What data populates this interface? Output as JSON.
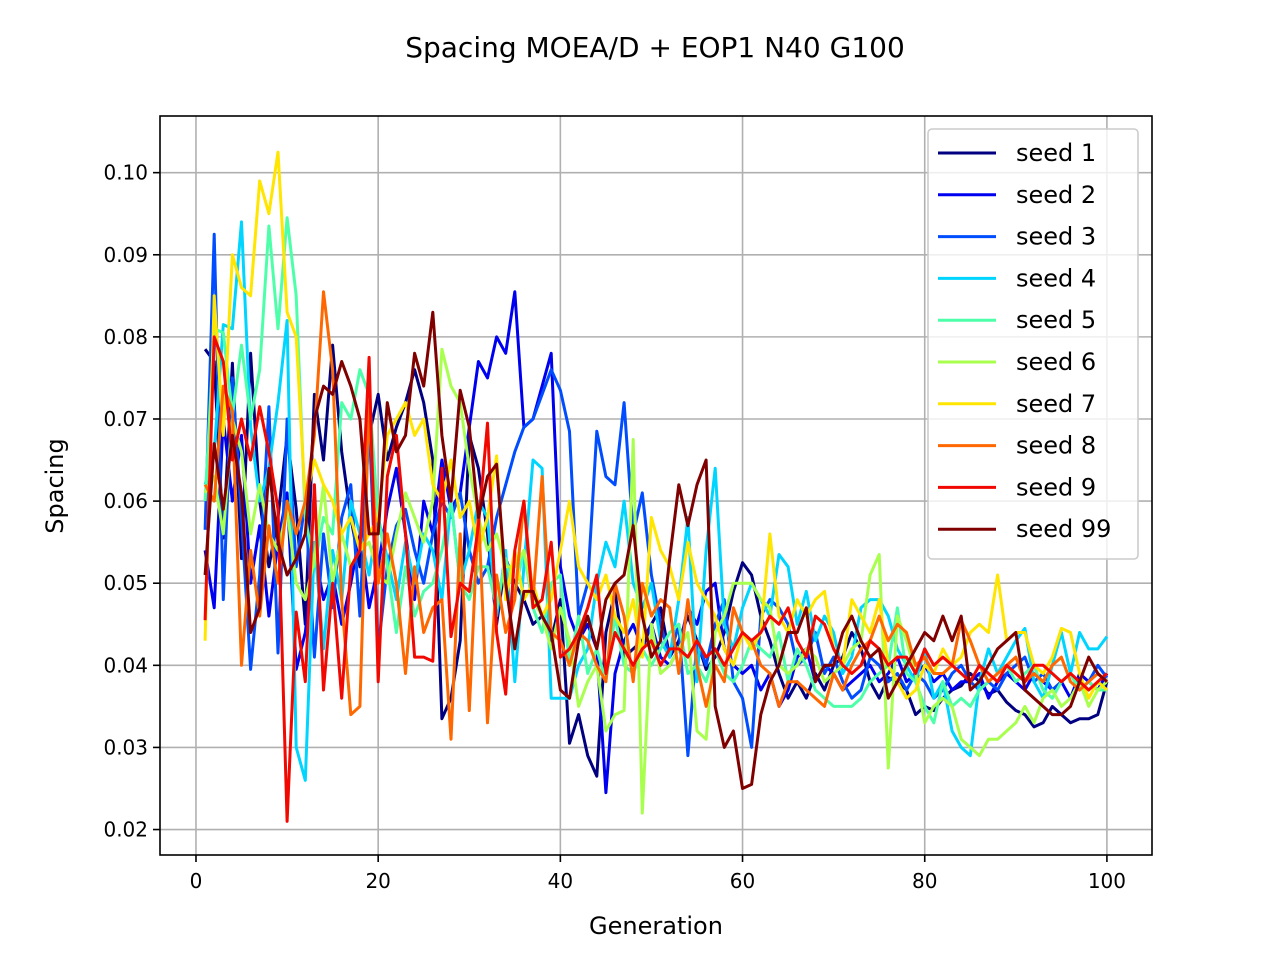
{
  "chart_data": {
    "type": "line",
    "title": "Spacing MOEA/D + EOP1 N40 G100",
    "xlabel": "Generation",
    "ylabel": "Spacing",
    "xlim": [
      -3.95,
      104.95
    ],
    "ylim": [
      0.0169,
      0.1069
    ],
    "xticks": [
      0,
      20,
      40,
      60,
      80,
      100
    ],
    "yticks": [
      0.02,
      0.03,
      0.04,
      0.05,
      0.06,
      0.07,
      0.08,
      0.09,
      0.1
    ],
    "xtick_labels": [
      "0",
      "20",
      "40",
      "60",
      "80",
      "100"
    ],
    "ytick_labels": [
      "0.02",
      "0.03",
      "0.04",
      "0.05",
      "0.06",
      "0.07",
      "0.08",
      "0.09",
      "0.10"
    ],
    "grid": true,
    "legend_position": "upper right",
    "colors": [
      "#000080",
      "#0000f1",
      "#004dff",
      "#00d5ff",
      "#4effa9",
      "#a9ff4e",
      "#ffe500",
      "#ff6800",
      "#f10800",
      "#800000"
    ],
    "series": [
      {
        "name": "seed 1",
        "values": [
          0.0785,
          0.077,
          0.0555,
          0.0768,
          0.053,
          0.078,
          0.06,
          0.052,
          0.058,
          0.068,
          0.059,
          0.045,
          0.073,
          0.065,
          0.079,
          0.066,
          0.058,
          0.052,
          0.068,
          0.073,
          0.065,
          0.069,
          0.072,
          0.076,
          0.072,
          0.065,
          0.0335,
          0.036,
          0.043,
          0.068,
          0.064,
          0.056,
          0.045,
          0.053,
          0.05,
          0.048,
          0.045,
          0.046,
          0.043,
          0.048,
          0.0305,
          0.034,
          0.029,
          0.0265,
          0.044,
          0.049,
          0.041,
          0.042,
          0.043,
          0.045,
          0.047,
          0.041,
          0.043,
          0.046,
          0.043,
          0.0395,
          0.041,
          0.044,
          0.049,
          0.0525,
          0.051,
          0.046,
          0.043,
          0.039,
          0.036,
          0.038,
          0.036,
          0.039,
          0.037,
          0.04,
          0.041,
          0.044,
          0.042,
          0.038,
          0.036,
          0.0385,
          0.038,
          0.037,
          0.034,
          0.035,
          0.0345,
          0.036,
          0.037,
          0.0375,
          0.039,
          0.038,
          0.0365,
          0.037,
          0.0355,
          0.0345,
          0.034,
          0.0325,
          0.033,
          0.035,
          0.034,
          0.033,
          0.0335,
          0.0335,
          0.034,
          0.038
        ]
      },
      {
        "name": "seed 2",
        "values": [
          0.054,
          0.047,
          0.07,
          0.06,
          0.068,
          0.05,
          0.057,
          0.046,
          0.055,
          0.061,
          0.0395,
          0.044,
          0.054,
          0.048,
          0.051,
          0.045,
          0.05,
          0.056,
          0.047,
          0.052,
          0.059,
          0.064,
          0.056,
          0.048,
          0.06,
          0.056,
          0.065,
          0.059,
          0.061,
          0.069,
          0.077,
          0.075,
          0.08,
          0.078,
          0.0855,
          0.069,
          0.07,
          0.074,
          0.078,
          0.052,
          0.046,
          0.043,
          0.045,
          0.042,
          0.0245,
          0.039,
          0.043,
          0.045,
          0.042,
          0.045,
          0.041,
          0.04,
          0.042,
          0.047,
          0.045,
          0.049,
          0.05,
          0.042,
          0.04,
          0.039,
          0.04,
          0.037,
          0.039,
          0.035,
          0.037,
          0.041,
          0.042,
          0.038,
          0.04,
          0.039,
          0.037,
          0.038,
          0.039,
          0.04,
          0.038,
          0.039,
          0.041,
          0.038,
          0.039,
          0.04,
          0.038,
          0.039,
          0.037,
          0.038,
          0.038,
          0.039,
          0.036,
          0.038,
          0.039,
          0.038,
          0.037,
          0.039,
          0.038,
          0.037,
          0.038,
          0.036,
          0.039,
          0.038,
          0.037,
          0.039
        ]
      },
      {
        "name": "seed 3",
        "values": [
          0.0565,
          0.0925,
          0.048,
          0.075,
          0.058,
          0.0395,
          0.051,
          0.0715,
          0.0415,
          0.07,
          0.052,
          0.06,
          0.041,
          0.056,
          0.047,
          0.058,
          0.062,
          0.046,
          0.07,
          0.042,
          0.052,
          0.057,
          0.059,
          0.054,
          0.05,
          0.056,
          0.06,
          0.058,
          0.061,
          0.054,
          0.05,
          0.052,
          0.058,
          0.062,
          0.066,
          0.069,
          0.07,
          0.073,
          0.076,
          0.0735,
          0.0685,
          0.046,
          0.05,
          0.0685,
          0.063,
          0.062,
          0.072,
          0.056,
          0.061,
          0.051,
          0.045,
          0.041,
          0.045,
          0.029,
          0.043,
          0.04,
          0.045,
          0.048,
          0.038,
          0.036,
          0.03,
          0.046,
          0.048,
          0.047,
          0.045,
          0.04,
          0.041,
          0.044,
          0.039,
          0.041,
          0.038,
          0.036,
          0.037,
          0.041,
          0.04,
          0.038,
          0.039,
          0.037,
          0.039,
          0.038,
          0.036,
          0.037,
          0.039,
          0.04,
          0.038,
          0.037,
          0.038,
          0.037,
          0.039,
          0.04,
          0.041,
          0.038,
          0.039,
          0.037,
          0.038,
          0.039,
          0.037,
          0.038,
          0.04,
          0.0385
        ]
      },
      {
        "name": "seed 4",
        "values": [
          0.062,
          0.066,
          0.0815,
          0.081,
          0.094,
          0.069,
          0.06,
          0.064,
          0.072,
          0.082,
          0.03,
          0.026,
          0.055,
          0.042,
          0.054,
          0.048,
          0.06,
          0.056,
          0.051,
          0.058,
          0.053,
          0.048,
          0.055,
          0.05,
          0.056,
          0.054,
          0.048,
          0.06,
          0.05,
          0.054,
          0.06,
          0.058,
          0.046,
          0.054,
          0.038,
          0.052,
          0.065,
          0.064,
          0.036,
          0.036,
          0.036,
          0.04,
          0.042,
          0.05,
          0.055,
          0.052,
          0.06,
          0.05,
          0.047,
          0.05,
          0.043,
          0.041,
          0.048,
          0.058,
          0.038,
          0.054,
          0.064,
          0.045,
          0.042,
          0.047,
          0.05,
          0.048,
          0.046,
          0.0535,
          0.052,
          0.045,
          0.049,
          0.043,
          0.046,
          0.044,
          0.039,
          0.041,
          0.047,
          0.048,
          0.048,
          0.046,
          0.042,
          0.04,
          0.038,
          0.042,
          0.036,
          0.038,
          0.032,
          0.03,
          0.029,
          0.038,
          0.042,
          0.039,
          0.041,
          0.043,
          0.0445,
          0.038,
          0.036,
          0.04,
          0.044,
          0.039,
          0.044,
          0.042,
          0.042,
          0.0435
        ]
      },
      {
        "name": "seed 5",
        "values": [
          0.06,
          0.081,
          0.0805,
          0.0705,
          0.079,
          0.07,
          0.076,
          0.0935,
          0.081,
          0.0945,
          0.085,
          0.058,
          0.052,
          0.058,
          0.056,
          0.072,
          0.07,
          0.076,
          0.073,
          0.058,
          0.052,
          0.044,
          0.052,
          0.046,
          0.049,
          0.05,
          0.054,
          0.06,
          0.05,
          0.048,
          0.052,
          0.052,
          0.047,
          0.053,
          0.049,
          0.054,
          0.047,
          0.044,
          0.05,
          0.051,
          0.04,
          0.046,
          0.039,
          0.042,
          0.038,
          0.046,
          0.04,
          0.039,
          0.042,
          0.04,
          0.042,
          0.044,
          0.045,
          0.039,
          0.04,
          0.038,
          0.042,
          0.039,
          0.038,
          0.04,
          0.043,
          0.042,
          0.041,
          0.044,
          0.038,
          0.042,
          0.04,
          0.037,
          0.036,
          0.035,
          0.035,
          0.035,
          0.036,
          0.038,
          0.039,
          0.04,
          0.047,
          0.039,
          0.038,
          0.035,
          0.033,
          0.038,
          0.035,
          0.036,
          0.035,
          0.037,
          0.038,
          0.039,
          0.04,
          0.038,
          0.039,
          0.04,
          0.037,
          0.036,
          0.038,
          0.039,
          0.037,
          0.038,
          0.037,
          0.037
        ]
      },
      {
        "name": "seed 6",
        "values": [
          0.061,
          0.063,
          0.056,
          0.07,
          0.066,
          0.056,
          0.062,
          0.056,
          0.054,
          0.059,
          0.05,
          0.048,
          0.053,
          0.062,
          0.05,
          0.056,
          0.052,
          0.054,
          0.055,
          0.051,
          0.05,
          0.056,
          0.061,
          0.058,
          0.055,
          0.06,
          0.0785,
          0.074,
          0.072,
          0.064,
          0.058,
          0.054,
          0.056,
          0.052,
          0.052,
          0.054,
          0.048,
          0.046,
          0.042,
          0.047,
          0.043,
          0.035,
          0.038,
          0.04,
          0.032,
          0.034,
          0.0345,
          0.0675,
          0.022,
          0.045,
          0.039,
          0.04,
          0.042,
          0.044,
          0.032,
          0.031,
          0.044,
          0.046,
          0.05,
          0.05,
          0.05,
          0.048,
          0.047,
          0.04,
          0.039,
          0.04,
          0.042,
          0.041,
          0.038,
          0.039,
          0.04,
          0.042,
          0.043,
          0.051,
          0.0535,
          0.0275,
          0.046,
          0.043,
          0.039,
          0.033,
          0.035,
          0.036,
          0.035,
          0.031,
          0.03,
          0.029,
          0.031,
          0.031,
          0.032,
          0.033,
          0.035,
          0.033,
          0.036,
          0.037,
          0.035,
          0.036,
          0.038,
          0.035,
          0.037,
          0.038
        ]
      },
      {
        "name": "seed 7",
        "values": [
          0.043,
          0.085,
          0.068,
          0.09,
          0.086,
          0.085,
          0.099,
          0.095,
          0.1025,
          0.083,
          0.08,
          0.06,
          0.065,
          0.062,
          0.06,
          0.056,
          0.058,
          0.054,
          0.056,
          0.058,
          0.068,
          0.07,
          0.072,
          0.068,
          0.07,
          0.062,
          0.06,
          0.065,
          0.058,
          0.06,
          0.054,
          0.058,
          0.0655,
          0.048,
          0.054,
          0.048,
          0.05,
          0.046,
          0.048,
          0.054,
          0.06,
          0.052,
          0.05,
          0.048,
          0.051,
          0.046,
          0.044,
          0.048,
          0.041,
          0.058,
          0.054,
          0.052,
          0.048,
          0.055,
          0.05,
          0.048,
          0.046,
          0.042,
          0.04,
          0.044,
          0.042,
          0.044,
          0.056,
          0.046,
          0.044,
          0.048,
          0.046,
          0.048,
          0.049,
          0.042,
          0.04,
          0.048,
          0.046,
          0.044,
          0.048,
          0.04,
          0.038,
          0.036,
          0.037,
          0.04,
          0.039,
          0.042,
          0.04,
          0.041,
          0.044,
          0.045,
          0.044,
          0.051,
          0.043,
          0.044,
          0.044,
          0.04,
          0.039,
          0.041,
          0.0445,
          0.044,
          0.039,
          0.036,
          0.038,
          0.037
        ]
      },
      {
        "name": "seed 8",
        "values": [
          0.062,
          0.06,
          0.074,
          0.071,
          0.04,
          0.054,
          0.046,
          0.057,
          0.05,
          0.06,
          0.056,
          0.06,
          0.068,
          0.0855,
          0.076,
          0.048,
          0.034,
          0.035,
          0.072,
          0.05,
          0.056,
          0.05,
          0.039,
          0.052,
          0.044,
          0.047,
          0.048,
          0.031,
          0.056,
          0.0345,
          0.059,
          0.033,
          0.051,
          0.044,
          0.048,
          0.06,
          0.048,
          0.063,
          0.044,
          0.043,
          0.04,
          0.044,
          0.043,
          0.04,
          0.038,
          0.05,
          0.046,
          0.038,
          0.05,
          0.046,
          0.048,
          0.047,
          0.039,
          0.048,
          0.04,
          0.035,
          0.04,
          0.038,
          0.047,
          0.044,
          0.043,
          0.04,
          0.039,
          0.035,
          0.038,
          0.038,
          0.037,
          0.036,
          0.035,
          0.039,
          0.037,
          0.04,
          0.042,
          0.043,
          0.046,
          0.043,
          0.045,
          0.044,
          0.04,
          0.041,
          0.039,
          0.039,
          0.04,
          0.0455,
          0.043,
          0.04,
          0.038,
          0.039,
          0.04,
          0.041,
          0.038,
          0.039,
          0.038,
          0.04,
          0.041,
          0.038,
          0.037,
          0.038,
          0.039,
          0.038
        ]
      },
      {
        "name": "seed 9",
        "values": [
          0.0455,
          0.08,
          0.077,
          0.065,
          0.07,
          0.065,
          0.0715,
          0.066,
          0.059,
          0.021,
          0.0465,
          0.038,
          0.062,
          0.037,
          0.05,
          0.036,
          0.052,
          0.054,
          0.0775,
          0.038,
          0.063,
          0.068,
          0.056,
          0.041,
          0.041,
          0.0405,
          0.064,
          0.0435,
          0.05,
          0.049,
          0.057,
          0.0695,
          0.044,
          0.0365,
          0.054,
          0.06,
          0.047,
          0.048,
          0.055,
          0.041,
          0.042,
          0.044,
          0.047,
          0.051,
          0.039,
          0.044,
          0.042,
          0.04,
          0.042,
          0.043,
          0.04,
          0.042,
          0.042,
          0.041,
          0.043,
          0.041,
          0.042,
          0.04,
          0.042,
          0.044,
          0.043,
          0.044,
          0.046,
          0.045,
          0.047,
          0.043,
          0.041,
          0.046,
          0.045,
          0.042,
          0.04,
          0.039,
          0.04,
          0.043,
          0.042,
          0.04,
          0.041,
          0.041,
          0.039,
          0.042,
          0.04,
          0.041,
          0.04,
          0.039,
          0.038,
          0.04,
          0.039,
          0.038,
          0.04,
          0.039,
          0.038,
          0.04,
          0.04,
          0.039,
          0.038,
          0.039,
          0.038,
          0.037,
          0.038,
          0.039
        ]
      },
      {
        "name": "seed 99",
        "values": [
          0.051,
          0.067,
          0.059,
          0.068,
          0.061,
          0.044,
          0.047,
          0.064,
          0.055,
          0.051,
          0.053,
          0.056,
          0.07,
          0.074,
          0.073,
          0.077,
          0.074,
          0.07,
          0.056,
          0.056,
          0.072,
          0.066,
          0.068,
          0.078,
          0.074,
          0.083,
          0.068,
          0.06,
          0.0735,
          0.069,
          0.058,
          0.063,
          0.0645,
          0.05,
          0.042,
          0.049,
          0.049,
          0.046,
          0.044,
          0.037,
          0.036,
          0.043,
          0.046,
          0.042,
          0.048,
          0.05,
          0.051,
          0.057,
          0.046,
          0.041,
          0.043,
          0.053,
          0.062,
          0.057,
          0.062,
          0.065,
          0.035,
          0.03,
          0.032,
          0.025,
          0.0255,
          0.034,
          0.038,
          0.04,
          0.044,
          0.044,
          0.047,
          0.038,
          0.04,
          0.04,
          0.044,
          0.046,
          0.043,
          0.041,
          0.042,
          0.036,
          0.038,
          0.04,
          0.042,
          0.044,
          0.043,
          0.046,
          0.043,
          0.046,
          0.037,
          0.038,
          0.04,
          0.042,
          0.043,
          0.044,
          0.037,
          0.036,
          0.035,
          0.034,
          0.034,
          0.035,
          0.038,
          0.041,
          0.039,
          0.038
        ]
      }
    ]
  }
}
